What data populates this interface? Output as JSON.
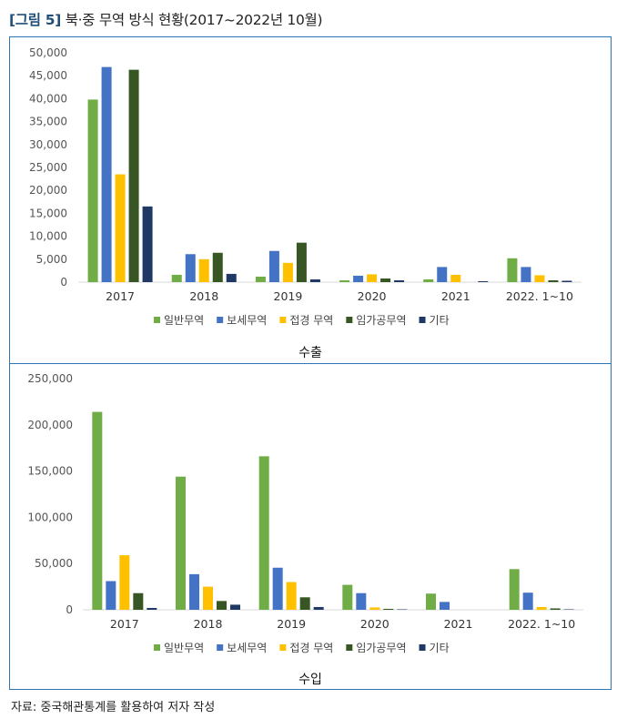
{
  "figure": {
    "title_tag": "[그림 5]",
    "title_text": "북·중 무역 방식 현황(2017~2022년 10월)",
    "source": "자료: 중국해관통계를 활용하여 저자 작성"
  },
  "colors": {
    "frame": "#2e75b6",
    "series": [
      "#70ad47",
      "#4472c4",
      "#ffc000",
      "#375623",
      "#203864"
    ]
  },
  "chart_data": [
    {
      "type": "bar",
      "title": "수출",
      "categories": [
        "2017",
        "2018",
        "2019",
        "2020",
        "2021",
        "2022. 1~10"
      ],
      "ylim": [
        0,
        50000
      ],
      "yticks": [
        0,
        5000,
        10000,
        15000,
        20000,
        25000,
        30000,
        35000,
        40000,
        45000,
        50000
      ],
      "ytick_labels": [
        "0",
        "5,000",
        "10,000",
        "15,000",
        "20,000",
        "25,000",
        "30,000",
        "35,000",
        "40,000",
        "45,000",
        "50,000"
      ],
      "grid": false,
      "legend": "bottom",
      "series": [
        {
          "name": "일반무역",
          "values": [
            39800,
            1600,
            1200,
            400,
            600,
            5200
          ]
        },
        {
          "name": "보세무역",
          "values": [
            46900,
            6100,
            6800,
            1400,
            3300,
            3300
          ]
        },
        {
          "name": "접경 무역",
          "values": [
            23500,
            5000,
            4200,
            1700,
            1600,
            1500
          ]
        },
        {
          "name": "임가공무역",
          "values": [
            46300,
            6400,
            8600,
            800,
            0,
            400
          ]
        },
        {
          "name": "기타",
          "values": [
            16500,
            1800,
            600,
            400,
            200,
            300
          ]
        }
      ]
    },
    {
      "type": "bar",
      "title": "수입",
      "categories": [
        "2017",
        "2018",
        "2019",
        "2020",
        "2021",
        "2022. 1~10"
      ],
      "ylim": [
        0,
        250000
      ],
      "yticks": [
        0,
        50000,
        100000,
        150000,
        200000,
        250000
      ],
      "ytick_labels": [
        "0",
        "50,000",
        "100,000",
        "150,000",
        "200,000",
        "250,000"
      ],
      "grid": false,
      "legend": "bottom",
      "series": [
        {
          "name": "일반무역",
          "values": [
            214000,
            144000,
            166000,
            27000,
            17500,
            44000
          ]
        },
        {
          "name": "보세무역",
          "values": [
            31000,
            38500,
            45500,
            18000,
            8500,
            18500
          ]
        },
        {
          "name": "접경 무역",
          "values": [
            59000,
            25000,
            30000,
            2500,
            0,
            3000
          ]
        },
        {
          "name": "임가공무역",
          "values": [
            18000,
            9500,
            13500,
            1000,
            0,
            1500
          ]
        },
        {
          "name": "기타",
          "values": [
            2000,
            5500,
            3000,
            500,
            0,
            500
          ]
        }
      ]
    }
  ]
}
